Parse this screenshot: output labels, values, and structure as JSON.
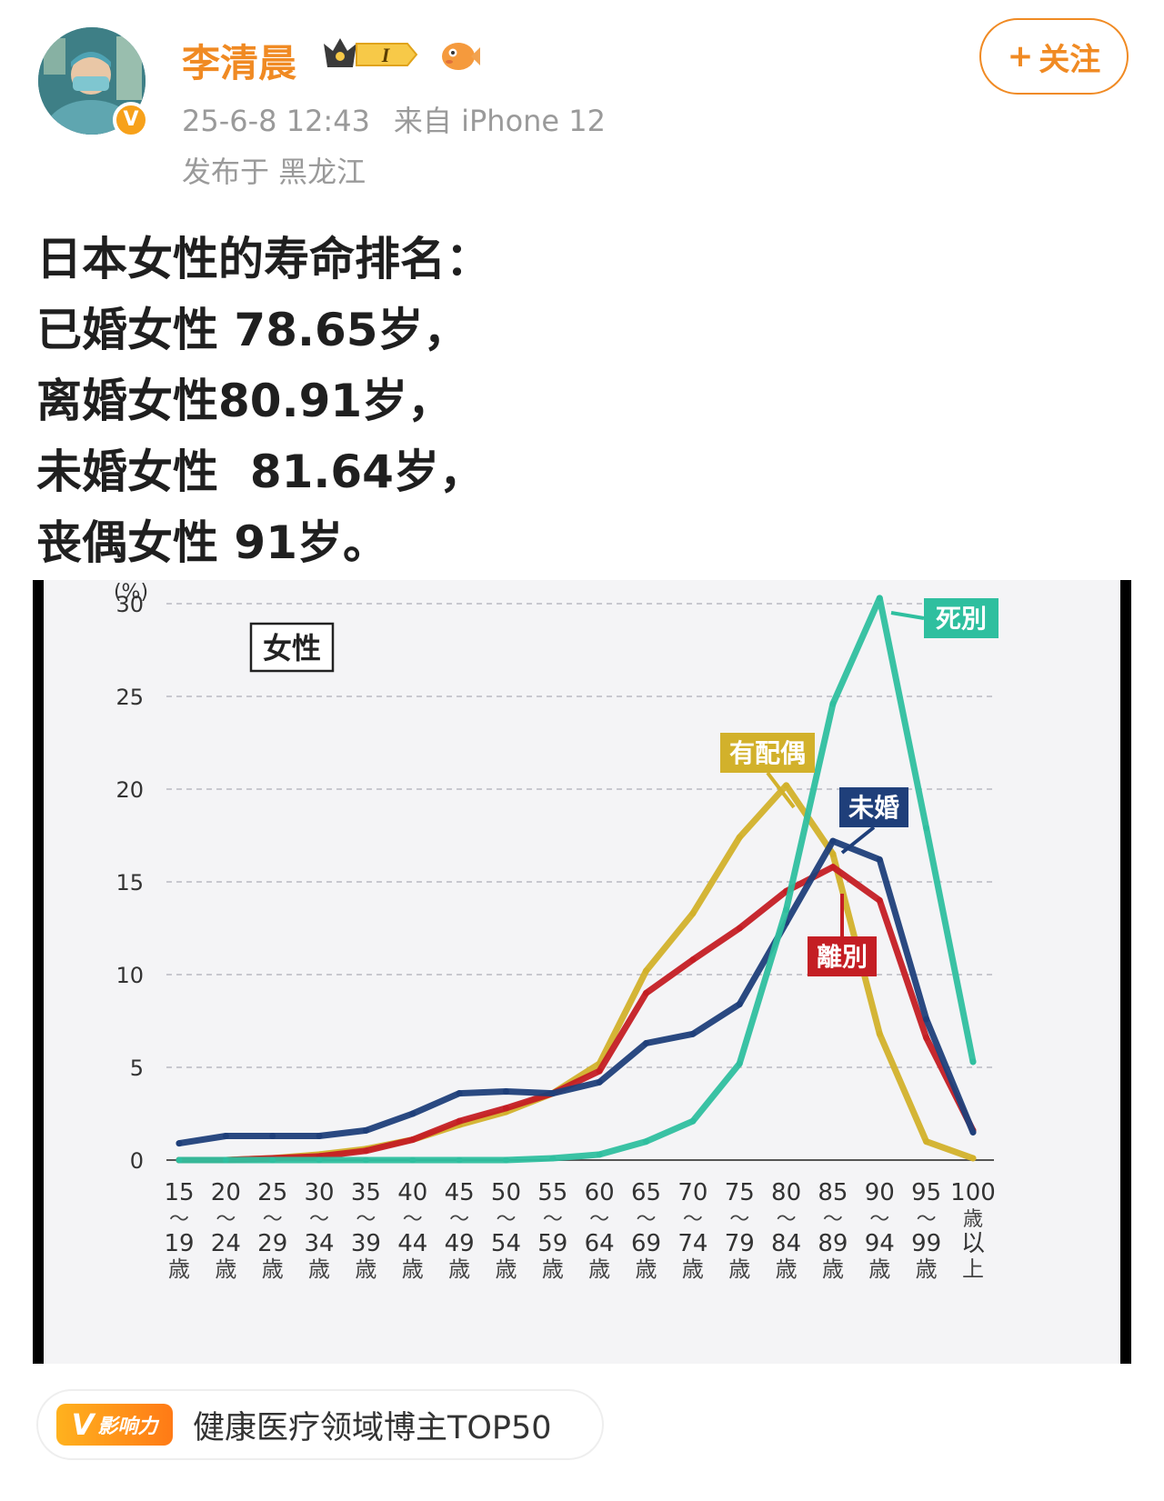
{
  "post": {
    "author": "李清晨",
    "level_badge": "I",
    "verified_mark": "V",
    "timestamp": "25-6-8 12:43",
    "source": "来自 iPhone 12",
    "location": "发布于 黑龙江",
    "follow_label": "关注",
    "follow_plus": "+",
    "text_lines": [
      "日本女性的寿命排名：",
      "已婚女性 78.65岁，",
      "离婚女性80.91岁，",
      "未婚女性  81.64岁，",
      "丧偶女性 91岁。"
    ]
  },
  "chart_data": {
    "type": "line",
    "title": "女性",
    "unit_label": "(%)",
    "ylim": [
      0,
      30
    ],
    "y_ticks": [
      "0",
      "5",
      "10",
      "15",
      "20",
      "25",
      "30"
    ],
    "grid": true,
    "categories": [
      "15～19歳",
      "20～24歳",
      "25～29歳",
      "30～34歳",
      "35～39歳",
      "40～44歳",
      "45～49歳",
      "50～54歳",
      "55～59歳",
      "60～64歳",
      "65～69歳",
      "70～74歳",
      "75～79歳",
      "80～84歳",
      "85～89歳",
      "90～94歳",
      "95～99歳",
      "100歳以上"
    ],
    "x_tick_top": [
      "15",
      "20",
      "25",
      "30",
      "35",
      "40",
      "45",
      "50",
      "55",
      "60",
      "65",
      "70",
      "75",
      "80",
      "85",
      "90",
      "95",
      "100"
    ],
    "x_tick_bottom": [
      "19",
      "24",
      "29",
      "34",
      "39",
      "44",
      "49",
      "54",
      "59",
      "64",
      "69",
      "74",
      "79",
      "84",
      "89",
      "94",
      "99",
      "以"
    ],
    "x_tick_last": [
      "歳",
      "歳",
      "歳",
      "歳",
      "歳",
      "歳",
      "歳",
      "歳",
      "歳",
      "歳",
      "歳",
      "歳",
      "歳",
      "歳",
      "歳",
      "歳",
      "歳",
      "上"
    ],
    "x_tick_sep": "～",
    "x_tick_mid_last": "歳",
    "series": [
      {
        "name": "有配偶",
        "color": "#d2b12b",
        "values": [
          0.0,
          0.0,
          0.1,
          0.3,
          0.6,
          1.1,
          1.9,
          2.6,
          3.6,
          5.2,
          10.2,
          13.3,
          17.4,
          20.2,
          16.5,
          6.8,
          1.0,
          0.1
        ]
      },
      {
        "name": "離別",
        "color": "#c41e24",
        "values": [
          0.0,
          0.0,
          0.1,
          0.2,
          0.5,
          1.1,
          2.1,
          2.8,
          3.6,
          4.8,
          9.0,
          10.8,
          12.5,
          14.5,
          15.8,
          14.0,
          6.6,
          1.6
        ]
      },
      {
        "name": "未婚",
        "color": "#1f3f7a",
        "values": [
          0.9,
          1.3,
          1.3,
          1.3,
          1.6,
          2.5,
          3.6,
          3.7,
          3.6,
          4.2,
          6.3,
          6.8,
          8.4,
          12.8,
          17.2,
          16.2,
          7.6,
          1.5
        ]
      },
      {
        "name": "死別",
        "color": "#2fbf9f",
        "values": [
          0.0,
          0.0,
          0.0,
          0.0,
          0.0,
          0.0,
          0.0,
          0.0,
          0.1,
          0.3,
          1.0,
          2.1,
          5.2,
          13.5,
          24.6,
          30.3,
          17.9,
          5.3
        ]
      }
    ],
    "series_labels": [
      {
        "name": "死別",
        "placement": "top-right"
      },
      {
        "name": "有配偶",
        "placement": "above 80-84"
      },
      {
        "name": "未婚",
        "placement": "above 85-89"
      },
      {
        "name": "離別",
        "placement": "below 85-89"
      }
    ]
  },
  "footer": {
    "badge_letter": "V",
    "badge_label": "影响力",
    "badge_text": "健康医疗领域博主TOP50"
  }
}
